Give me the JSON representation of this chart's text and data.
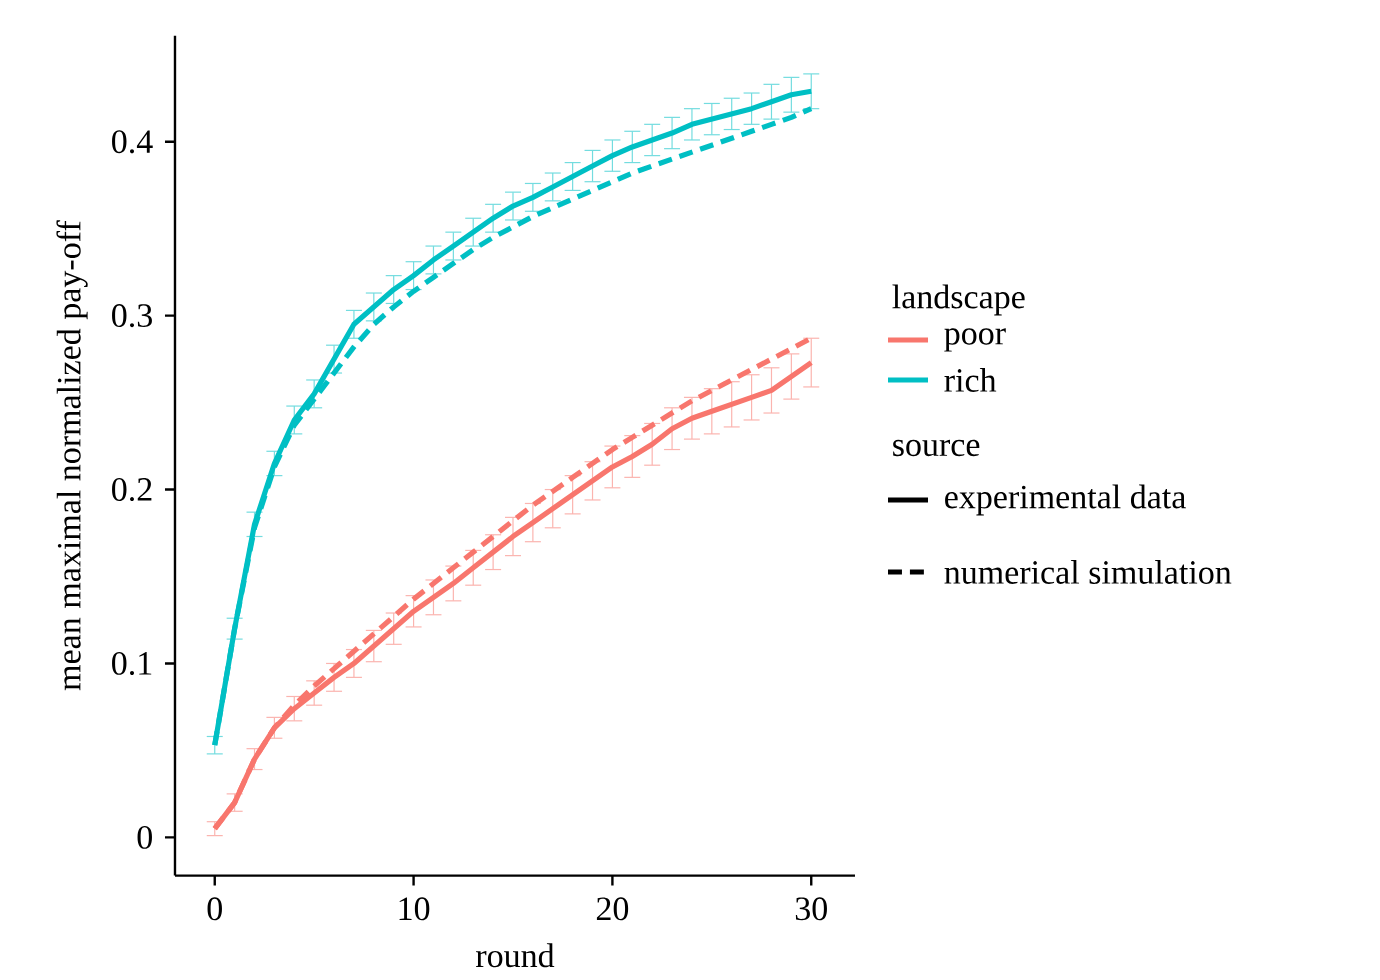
{
  "chart_data": {
    "type": "line",
    "xlabel": "round",
    "ylabel": "mean maximal normalized pay-off",
    "legend_title": "landscape",
    "legend": "right",
    "grid": false,
    "marker": "none",
    "x": [
      0,
      1,
      2,
      3,
      4,
      5,
      6,
      7,
      8,
      9,
      10,
      11,
      12,
      13,
      14,
      15,
      16,
      17,
      18,
      19,
      20,
      21,
      22,
      23,
      24,
      25,
      26,
      27,
      28,
      29,
      30
    ],
    "xlim": [
      -2,
      32.2
    ],
    "ylim": [
      -0.022,
      0.461
    ],
    "xticks": [
      0,
      10,
      20,
      30
    ],
    "yticks": [
      0,
      0.1,
      0.2,
      0.3,
      0.4
    ],
    "series": [
      {
        "name": "poor",
        "color": "#f8766d",
        "line_style": "solid",
        "values": [
          0.005,
          0.02,
          0.045,
          0.063,
          0.074,
          0.083,
          0.092,
          0.1,
          0.11,
          0.12,
          0.13,
          0.138,
          0.146,
          0.155,
          0.164,
          0.173,
          0.181,
          0.189,
          0.197,
          0.205,
          0.213,
          0.219,
          0.226,
          0.235,
          0.241,
          0.245,
          0.249,
          0.253,
          0.257,
          0.265,
          0.273
        ],
        "errors": [
          0.004,
          0.005,
          0.006,
          0.006,
          0.007,
          0.007,
          0.008,
          0.008,
          0.009,
          0.009,
          0.009,
          0.01,
          0.01,
          0.01,
          0.01,
          0.011,
          0.011,
          0.011,
          0.011,
          0.011,
          0.012,
          0.012,
          0.012,
          0.012,
          0.012,
          0.013,
          0.013,
          0.013,
          0.013,
          0.013,
          0.014
        ]
      },
      {
        "name": "rich",
        "color": "#00bfc4",
        "line_style": "solid",
        "values": [
          0.053,
          0.12,
          0.18,
          0.215,
          0.24,
          0.255,
          0.275,
          0.295,
          0.305,
          0.315,
          0.323,
          0.332,
          0.34,
          0.348,
          0.356,
          0.363,
          0.368,
          0.374,
          0.38,
          0.386,
          0.392,
          0.397,
          0.401,
          0.405,
          0.41,
          0.413,
          0.416,
          0.419,
          0.423,
          0.427,
          0.429
        ],
        "errors": [
          0.005,
          0.006,
          0.007,
          0.007,
          0.008,
          0.008,
          0.008,
          0.008,
          0.008,
          0.008,
          0.008,
          0.008,
          0.008,
          0.008,
          0.008,
          0.008,
          0.008,
          0.008,
          0.008,
          0.009,
          0.009,
          0.009,
          0.009,
          0.009,
          0.009,
          0.009,
          0.009,
          0.009,
          0.01,
          0.01,
          0.01
        ]
      },
      {
        "color": "#f8766d",
        "line_style": "dashed",
        "values": [
          0.005,
          0.02,
          0.045,
          0.063,
          0.076,
          0.087,
          0.097,
          0.107,
          0.117,
          0.127,
          0.137,
          0.146,
          0.155,
          0.164,
          0.173,
          0.182,
          0.191,
          0.199,
          0.207,
          0.215,
          0.223,
          0.23,
          0.237,
          0.244,
          0.251,
          0.257,
          0.263,
          0.269,
          0.275,
          0.281,
          0.287
        ]
      },
      {
        "color": "#00bfc4",
        "line_style": "dashed",
        "values": [
          0.053,
          0.12,
          0.178,
          0.213,
          0.237,
          0.252,
          0.267,
          0.282,
          0.295,
          0.305,
          0.314,
          0.322,
          0.33,
          0.338,
          0.345,
          0.351,
          0.357,
          0.362,
          0.367,
          0.372,
          0.377,
          0.382,
          0.386,
          0.39,
          0.394,
          0.398,
          0.402,
          0.406,
          0.41,
          0.414,
          0.419
        ]
      }
    ],
    "annotations": [
      "source",
      "experimental data",
      "numerical simulation"
    ]
  }
}
